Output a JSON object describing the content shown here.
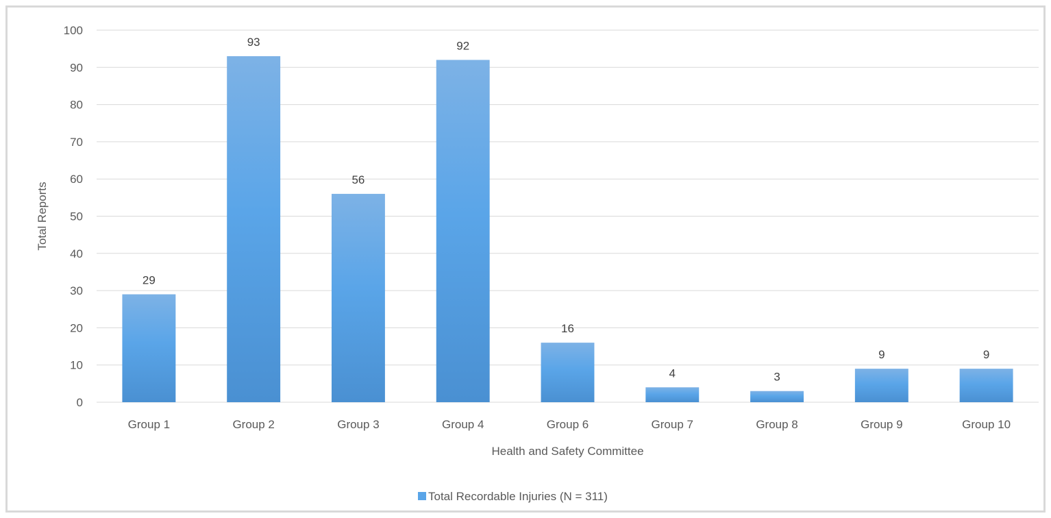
{
  "chart_data": {
    "type": "bar",
    "categories": [
      "Group 1",
      "Group 2",
      "Group 3",
      "Group 4",
      "Group 6",
      "Group 7",
      "Group 8",
      "Group 9",
      "Group 10"
    ],
    "series": [
      {
        "name": "Total Recordable Injuries (N = 311)",
        "values": [
          29,
          93,
          56,
          92,
          16,
          4,
          3,
          9,
          9
        ]
      }
    ],
    "data_labels": [
      "29",
      "93",
      "56",
      "92",
      "16",
      "4",
      "3",
      "9",
      "9"
    ],
    "xlabel": "Health and Safety Committee",
    "ylabel": "Total Reports",
    "ylim": [
      0,
      100
    ],
    "yticks": [
      0,
      10,
      20,
      30,
      40,
      50,
      60,
      70,
      80,
      90,
      100
    ],
    "grid": true,
    "legend_position": "bottom",
    "colors": {
      "bar_top": "#7db2e6",
      "bar_mid": "#5aa5e8",
      "bar_bottom": "#4a90d2",
      "grid": "#d9d9d9",
      "text": "#595959",
      "frame": "#d9d9d9"
    }
  }
}
